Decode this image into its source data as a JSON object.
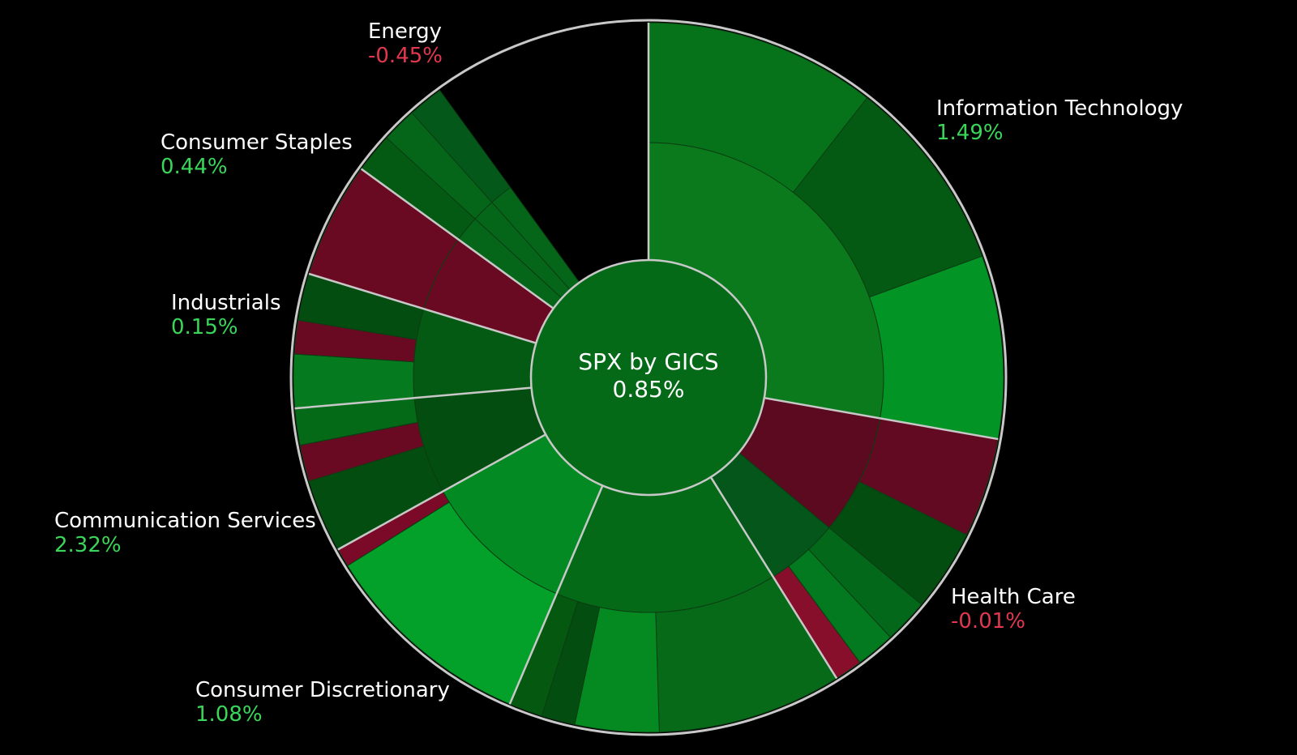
{
  "chart_data": {
    "type": "sunburst",
    "center": {
      "title": "SPX by GICS",
      "value": "0.85%"
    },
    "sectors": [
      {
        "name": "Information Technology",
        "change": "1.49%",
        "direction": "up",
        "color": "#05751a",
        "industries": [
          {
            "color": "#0a7a1c",
            "segments": [
              {
                "color": "#06731a"
              },
              {
                "color": "#055a13"
              },
              {
                "color": "#029526"
              }
            ]
          }
        ]
      },
      {
        "name": "Health Care",
        "change": "-0.01%",
        "direction": "down",
        "color": "#5c0a1e",
        "industries": [
          {
            "color": "#5b0a1f",
            "segments": [
              {
                "color": "#620a21"
              },
              {
                "color": "#044d10"
              }
            ]
          },
          {
            "color": "#04561a",
            "segments": [
              {
                "color": "#04681a"
              },
              {
                "color": "#037a20"
              },
              {
                "color": "#880f2b"
              }
            ]
          }
        ]
      },
      {
        "name": "Consumer Discretionary",
        "change": "1.08%",
        "direction": "up",
        "color": "#056a18",
        "industries": [
          {
            "color": "#056a18",
            "segments": [
              {
                "color": "#066a19"
              },
              {
                "color": "#058a22"
              },
              {
                "color": "#044d10"
              },
              {
                "color": "#04580f"
              }
            ]
          }
        ]
      },
      {
        "name": "Communication Services",
        "change": "2.32%",
        "direction": "up",
        "color": "#038a22",
        "industries": [
          {
            "color": "#038a22",
            "segments": [
              {
                "color": "#03a02a"
              },
              {
                "color": "#7a0a28"
              }
            ]
          }
        ]
      },
      {
        "name": "Industrials",
        "change": "0.15%",
        "direction": "up",
        "color": "#04500f",
        "industries": [
          {
            "color": "#044d10",
            "segments": [
              {
                "color": "#044d10"
              },
              {
                "color": "#6a0a22"
              },
              {
                "color": "#046a18"
              }
            ]
          }
        ]
      },
      {
        "name": "Consumer Staples",
        "change": "0.44%",
        "direction": "up",
        "color": "#055a13",
        "industries": [
          {
            "color": "#055a13",
            "segments": [
              {
                "color": "#057a1e"
              },
              {
                "color": "#6a0a22"
              },
              {
                "color": "#044d10"
              }
            ]
          }
        ]
      },
      {
        "name": "Energy",
        "change": "-0.45%",
        "direction": "down",
        "color": "#6a0a22",
        "industries": [
          {
            "color": "#6a0a22",
            "segments": [
              {
                "color": "#6a0a22"
              }
            ]
          }
        ]
      },
      {
        "name": "",
        "change": "",
        "direction": "up",
        "color": "#046a18",
        "industries": [
          {
            "color": "#05661a",
            "segments": [
              {
                "color": "#055a13"
              }
            ]
          },
          {
            "color": "#05661a",
            "segments": [
              {
                "color": "#05661a"
              }
            ]
          },
          {
            "color": "#05661a",
            "segments": [
              {
                "color": "#04581a"
              }
            ]
          }
        ]
      }
    ]
  },
  "colors": {
    "up": "#3ad65a",
    "down": "#e0384e",
    "border": "#c8c8c8",
    "background": "#000000"
  }
}
